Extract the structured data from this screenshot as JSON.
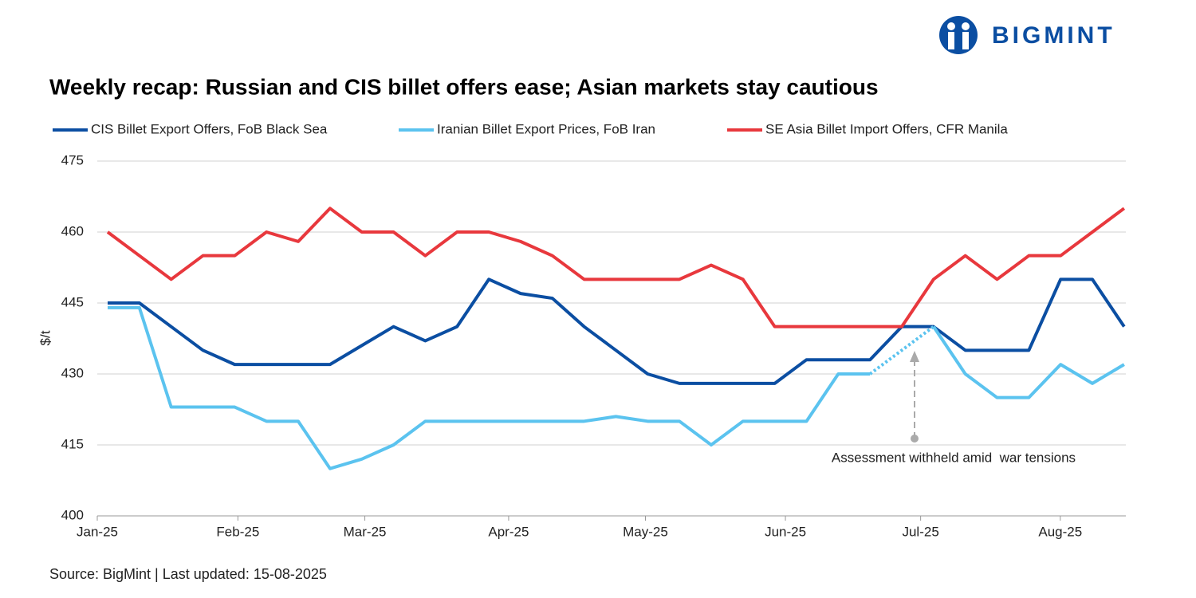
{
  "logo": "BIGMINT",
  "chart_data": {
    "type": "line",
    "title": "Weekly recap: Russian and CIS billet offers ease; Asian markets stay cautious",
    "y_label": "$/t",
    "categories": [
      null,
      null,
      null,
      null,
      null,
      null,
      null,
      null,
      null,
      null,
      null,
      null,
      null,
      null,
      null,
      null,
      null,
      null,
      null,
      null,
      null,
      null,
      null,
      null,
      null,
      null,
      null,
      null,
      null,
      null,
      null,
      null,
      null
    ],
    "xlim": [
      -0.33,
      32
    ],
    "xticks": [
      {
        "value": -0.33,
        "label": "Jan-25"
      },
      {
        "value": 4.09,
        "label": "Feb-25"
      },
      {
        "value": 8.08,
        "label": "Mar-25"
      },
      {
        "value": 12.6,
        "label": "Apr-25"
      },
      {
        "value": 16.9,
        "label": "May-25"
      },
      {
        "value": 21.3,
        "label": "Jun-25"
      },
      {
        "value": 25.55,
        "label": "Jul-25"
      },
      {
        "value": 29.94,
        "label": "Aug-25"
      }
    ],
    "ylim": [
      400,
      475
    ],
    "yticks": [
      400,
      415,
      430,
      445,
      460,
      475
    ],
    "grid": true,
    "series": [
      {
        "name": "CIS Billet Export Offers, FoB Black Sea",
        "color": "#0b4ea2",
        "values": [
          445,
          445,
          440,
          435,
          432,
          432,
          432,
          432,
          436,
          440,
          437,
          440,
          450,
          447,
          446,
          440,
          435,
          430,
          428,
          428,
          428,
          428,
          433,
          433,
          433,
          440,
          440,
          435,
          435,
          435,
          450,
          450,
          440
        ]
      },
      {
        "name": "Iranian Billet Export Prices, FoB Iran",
        "color": "#5bc3ef",
        "values": [
          444,
          444,
          423,
          423,
          423,
          420,
          420,
          410,
          412,
          415,
          420,
          420,
          420,
          420,
          420,
          420,
          421,
          420,
          420,
          415,
          420,
          420,
          420,
          430,
          430,
          null,
          440,
          430,
          425,
          425,
          432,
          428,
          432
        ]
      },
      {
        "name": "SE Asia Billet Import Offers, CFR Manila",
        "color": "#e8383d",
        "values": [
          460,
          455,
          450,
          455,
          455,
          460,
          458,
          465,
          460,
          460,
          455,
          460,
          460,
          458,
          455,
          450,
          450,
          450,
          450,
          453,
          450,
          440,
          440,
          440,
          440,
          440,
          450,
          455,
          450,
          455,
          455,
          460,
          465
        ]
      }
    ],
    "annotation": "Assessment withheld amid  war tensions",
    "source": "Source: BigMint | Last updated: 15-08-2025"
  }
}
